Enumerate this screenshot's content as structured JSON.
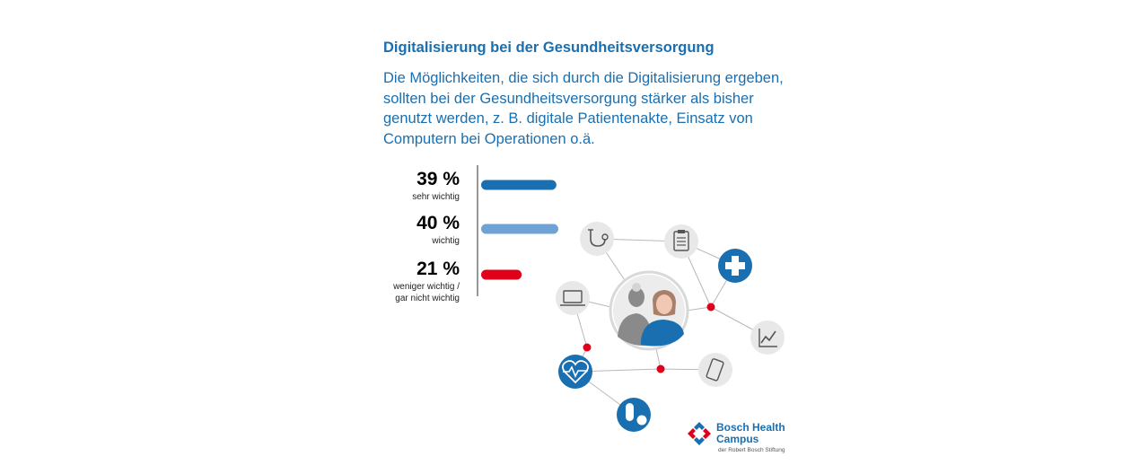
{
  "header": {
    "title": "Digitalisierung bei der Gesundheitsversorgung",
    "subtitle": "Die Möglichkeiten, die sich durch die Digitalisierung ergeben, sollten bei der Gesundheitsversorgung stärker als bisher genutzt werden, z. B. digitale Patientenakte, Einsatz von Computern bei Operationen o.ä."
  },
  "chart_data": {
    "type": "bar",
    "orientation": "horizontal",
    "categories": [
      "sehr wichtig",
      "wichtig",
      "weniger wichtig / gar nicht wichtig"
    ],
    "category_lines": [
      [
        "sehr wichtig"
      ],
      [
        "wichtig"
      ],
      [
        "weniger wichtig /",
        "gar nicht wichtig"
      ]
    ],
    "values": [
      39,
      40,
      21
    ],
    "value_labels": [
      "39 %",
      "40 %",
      "21 %"
    ],
    "unit": "%",
    "colors": [
      "#1a6fb0",
      "#6fa3d6",
      "#e1001a"
    ],
    "xlim": [
      0,
      100
    ],
    "grid": false,
    "legend": "none"
  },
  "illustration": {
    "icons": [
      "stethoscope-icon",
      "clipboard-icon",
      "medical-cross-icon",
      "laptop-icon",
      "trend-chart-icon",
      "heart-rate-icon",
      "smartphone-icon",
      "pills-icon",
      "people-avatar"
    ],
    "colors": {
      "blue": "#1a6fb0",
      "gray": "#e8e8e8",
      "red": "#e1001a",
      "line": "#b8b8b8"
    }
  },
  "logo": {
    "name_line1": "Bosch Health",
    "name_line2": "Campus",
    "subline": "der Robert Bosch Stiftung"
  }
}
